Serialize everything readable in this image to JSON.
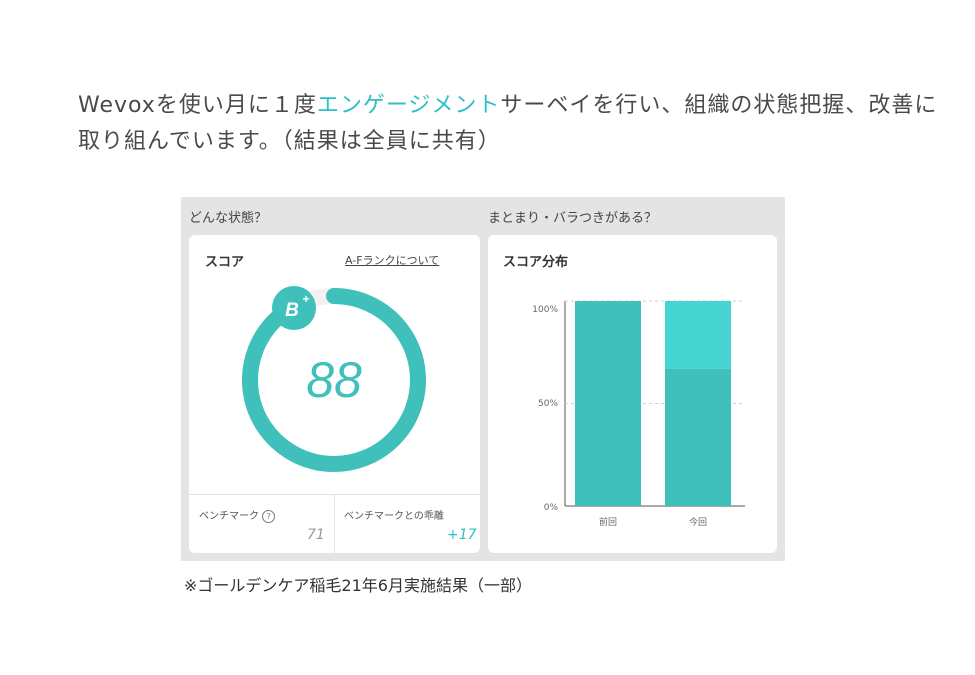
{
  "intro": {
    "part1": "Wevoxを使い月に１度",
    "highlight": "エンゲージメント",
    "part2": "サーベイを行い、組織の状態把握、改善に取り組んでいます。（結果は全員に共有）"
  },
  "left_section": {
    "label": "どんな状態？",
    "card_title": "スコア",
    "rank_link": "A-Fランクについて",
    "badge": "B",
    "badge_sup": "+",
    "score": "88",
    "score_fraction": 0.88,
    "benchmark_label": "ベンチマーク",
    "help_icon": "?",
    "benchmark_value": "71",
    "gap_label": "ベンチマークとの乖離",
    "gap_value": "+17"
  },
  "right_section": {
    "label": "まとまり・バラつきがある？",
    "card_title": "スコア分布"
  },
  "chart_data": {
    "type": "bar",
    "stacked": true,
    "title": "スコア分布",
    "categories": [
      "前回",
      "今回"
    ],
    "yticks": [
      "100%",
      "50%",
      "0%"
    ],
    "ylim": [
      0,
      100
    ],
    "series": [
      {
        "color": "#3fc0bb",
        "values": [
          100,
          67
        ]
      },
      {
        "color": "#45d4cf",
        "values": [
          0,
          33
        ]
      }
    ],
    "grid": true
  },
  "note": "※ゴールデンケア稲毛21年6月実施結果（一部）",
  "colors": {
    "accent": "#2fbfc7",
    "teal": "#3fc0bb",
    "teal_light": "#45d4cf",
    "panel_bg": "#e4e4e4"
  }
}
